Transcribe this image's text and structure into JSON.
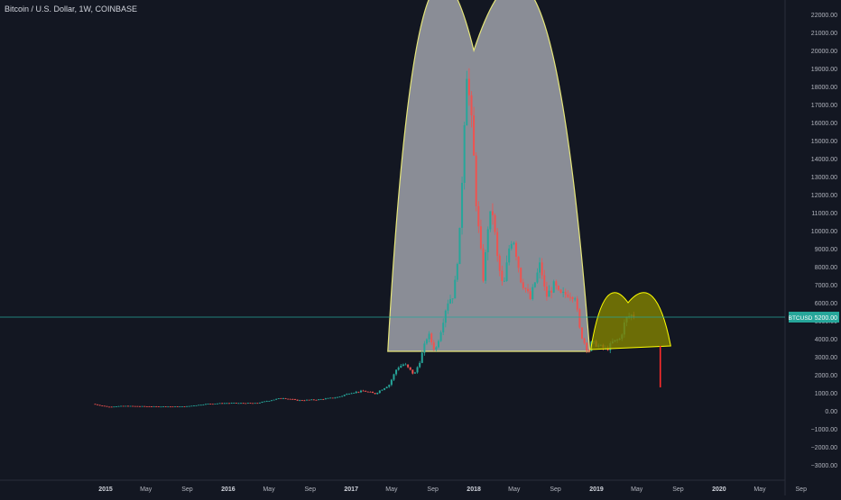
{
  "header": {
    "symbol_title": "Bitcoin / U.S. Dollar, 1W, COINBASE"
  },
  "colors": {
    "background": "#131722",
    "up": "#26a69a",
    "down": "#ef5350",
    "axis_text": "#b2b5be",
    "price_line": "#26a69a",
    "big_arc_fill": "#9598a1",
    "big_arc_stroke": "#e6e67a",
    "small_arc_fill": "#808000",
    "small_arc_stroke": "#ffff00",
    "marker_line": "#ff2b2b"
  },
  "chart_data": {
    "type": "candlestick",
    "title": "Bitcoin / U.S. Dollar, 1W, COINBASE",
    "ylim": [
      -3400,
      22600
    ],
    "y_ticks": [
      "22000.00",
      "21000.00",
      "20000.00",
      "19000.00",
      "18000.00",
      "17000.00",
      "16000.00",
      "15000.00",
      "14000.00",
      "13000.00",
      "12000.00",
      "11000.00",
      "10000.00",
      "9000.00",
      "8000.00",
      "7000.00",
      "6000.00",
      "5000.00",
      "4000.00",
      "3000.00",
      "2000.00",
      "1000.00",
      "0.00",
      "−1000.00",
      "−2000.00",
      "−3000.00"
    ],
    "x_ticks": [
      {
        "label": "2015",
        "date": "2015-01-01"
      },
      {
        "label": "May",
        "date": "2015-05-01"
      },
      {
        "label": "Sep",
        "date": "2015-09-01"
      },
      {
        "label": "2016",
        "date": "2016-01-01"
      },
      {
        "label": "May",
        "date": "2016-05-01"
      },
      {
        "label": "Sep",
        "date": "2016-09-01"
      },
      {
        "label": "2017",
        "date": "2017-01-01"
      },
      {
        "label": "May",
        "date": "2017-05-01"
      },
      {
        "label": "Sep",
        "date": "2017-09-01"
      },
      {
        "label": "2018",
        "date": "2018-01-01"
      },
      {
        "label": "May",
        "date": "2018-05-01"
      },
      {
        "label": "Sep",
        "date": "2018-09-01"
      },
      {
        "label": "2019",
        "date": "2019-01-01"
      },
      {
        "label": "May",
        "date": "2019-05-01"
      },
      {
        "label": "Sep",
        "date": "2019-09-01"
      },
      {
        "label": "2020",
        "date": "2020-01-01"
      },
      {
        "label": "May",
        "date": "2020-05-01"
      },
      {
        "label": "Sep",
        "date": "2020-09-01"
      }
    ],
    "current_price": {
      "label": "BTCUSD",
      "value": 5200.0,
      "value_text": "5200.00"
    },
    "price_path": [
      [
        "2014-12-01",
        380
      ],
      [
        "2015-01-15",
        220
      ],
      [
        "2015-03-01",
        270
      ],
      [
        "2015-06-01",
        240
      ],
      [
        "2015-09-01",
        235
      ],
      [
        "2015-11-05",
        380
      ],
      [
        "2016-01-01",
        430
      ],
      [
        "2016-04-01",
        420
      ],
      [
        "2016-06-17",
        720
      ],
      [
        "2016-08-01",
        580
      ],
      [
        "2016-10-01",
        620
      ],
      [
        "2016-12-01",
        760
      ],
      [
        "2017-01-05",
        1000
      ],
      [
        "2017-02-15",
        1100
      ],
      [
        "2017-03-20",
        950
      ],
      [
        "2017-05-01",
        1450
      ],
      [
        "2017-05-25",
        2400
      ],
      [
        "2017-06-15",
        2600
      ],
      [
        "2017-07-15",
        2000
      ],
      [
        "2017-08-01",
        2800
      ],
      [
        "2017-08-25",
        4300
      ],
      [
        "2017-09-15",
        3300
      ],
      [
        "2017-10-01",
        4400
      ],
      [
        "2017-10-20",
        6000
      ],
      [
        "2017-11-10",
        6500
      ],
      [
        "2017-11-28",
        10000
      ],
      [
        "2017-12-17",
        19200
      ],
      [
        "2018-01-05",
        15000
      ],
      [
        "2018-01-17",
        11000
      ],
      [
        "2018-02-06",
        7200
      ],
      [
        "2018-02-20",
        10500
      ],
      [
        "2018-03-05",
        11000
      ],
      [
        "2018-03-20",
        8300
      ],
      [
        "2018-04-06",
        6700
      ],
      [
        "2018-04-25",
        9300
      ],
      [
        "2018-05-05",
        9700
      ],
      [
        "2018-05-28",
        7300
      ],
      [
        "2018-06-25",
        6200
      ],
      [
        "2018-07-25",
        8200
      ],
      [
        "2018-08-10",
        6300
      ],
      [
        "2018-09-05",
        7000
      ],
      [
        "2018-09-20",
        6400
      ],
      [
        "2018-10-15",
        6500
      ],
      [
        "2018-11-05",
        6400
      ],
      [
        "2018-11-20",
        4400
      ],
      [
        "2018-12-15",
        3250
      ],
      [
        "2018-12-25",
        3800
      ],
      [
        "2019-01-15",
        3600
      ],
      [
        "2019-02-08",
        3400
      ],
      [
        "2019-02-25",
        3800
      ],
      [
        "2019-03-20",
        4000
      ],
      [
        "2019-04-02",
        4900
      ],
      [
        "2019-04-10",
        5200
      ],
      [
        "2019-04-22",
        5300
      ]
    ],
    "drawings": {
      "big_arc": {
        "start": [
          "2017-04-20",
          3300
        ],
        "end": [
          "2018-12-12",
          3300
        ],
        "peak": [
          "2018-01-01",
          20000
        ]
      },
      "small_arc": {
        "start": [
          "2018-12-15",
          3400
        ],
        "end": [
          "2019-08-10",
          3600
        ],
        "peak": [
          "2019-04-05",
          6000
        ]
      },
      "marker_line": {
        "date": "2019-07-10",
        "from": 3600,
        "to": 1300
      }
    }
  }
}
